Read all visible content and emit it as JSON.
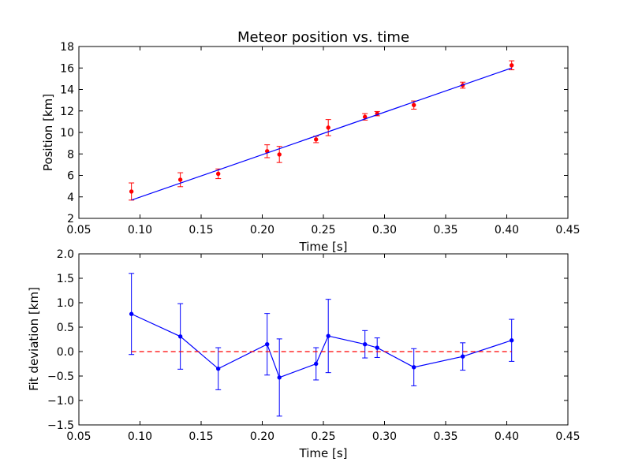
{
  "chart_data": [
    {
      "type": "scatter",
      "title": "Meteor position vs. time",
      "xlabel": "Time [s]",
      "ylabel": "Position [km]",
      "xlim": [
        0.05,
        0.45
      ],
      "ylim": [
        2,
        18
      ],
      "xticks": [
        "0.05",
        "0.10",
        "0.15",
        "0.20",
        "0.25",
        "0.30",
        "0.35",
        "0.40",
        "0.45"
      ],
      "yticks": [
        "2",
        "4",
        "6",
        "8",
        "10",
        "12",
        "14",
        "16",
        "18"
      ],
      "grid": false,
      "series": [
        {
          "kind": "errorbar-points",
          "color": "#ff0000",
          "points": [
            {
              "x": 0.093,
              "y": 4.5,
              "err": 0.8
            },
            {
              "x": 0.133,
              "y": 5.6,
              "err": 0.65
            },
            {
              "x": 0.164,
              "y": 6.15,
              "err": 0.45
            },
            {
              "x": 0.204,
              "y": 8.25,
              "err": 0.6
            },
            {
              "x": 0.214,
              "y": 7.95,
              "err": 0.75
            },
            {
              "x": 0.244,
              "y": 9.35,
              "err": 0.3
            },
            {
              "x": 0.254,
              "y": 10.45,
              "err": 0.75
            },
            {
              "x": 0.284,
              "y": 11.45,
              "err": 0.3
            },
            {
              "x": 0.294,
              "y": 11.75,
              "err": 0.2
            },
            {
              "x": 0.324,
              "y": 12.55,
              "err": 0.38
            },
            {
              "x": 0.364,
              "y": 14.4,
              "err": 0.28
            },
            {
              "x": 0.404,
              "y": 16.25,
              "err": 0.42
            }
          ]
        },
        {
          "kind": "fit-line",
          "color": "#0000ff",
          "x": [
            0.093,
            0.404
          ],
          "y": [
            3.7,
            16.0
          ]
        }
      ]
    },
    {
      "type": "line",
      "title": "",
      "xlabel": "Time [s]",
      "ylabel": "Fit deviation [km]",
      "xlim": [
        0.05,
        0.45
      ],
      "ylim": [
        -1.5,
        2.0
      ],
      "xticks": [
        "0.05",
        "0.10",
        "0.15",
        "0.20",
        "0.25",
        "0.30",
        "0.35",
        "0.40",
        "0.45"
      ],
      "yticks": [
        "−1.5",
        "−1.0",
        "−0.5",
        "0.0",
        "0.5",
        "1.0",
        "1.5",
        "2.0"
      ],
      "grid": false,
      "series": [
        {
          "kind": "errorbar-line",
          "color": "#0000ff",
          "points": [
            {
              "x": 0.093,
              "y": 0.77,
              "err": 0.83
            },
            {
              "x": 0.133,
              "y": 0.31,
              "err": 0.67
            },
            {
              "x": 0.164,
              "y": -0.35,
              "err": 0.43
            },
            {
              "x": 0.204,
              "y": 0.15,
              "err": 0.63
            },
            {
              "x": 0.214,
              "y": -0.53,
              "err": 0.79
            },
            {
              "x": 0.244,
              "y": -0.25,
              "err": 0.33
            },
            {
              "x": 0.254,
              "y": 0.32,
              "err": 0.75
            },
            {
              "x": 0.284,
              "y": 0.15,
              "err": 0.28
            },
            {
              "x": 0.294,
              "y": 0.08,
              "err": 0.2
            },
            {
              "x": 0.324,
              "y": -0.32,
              "err": 0.38
            },
            {
              "x": 0.364,
              "y": -0.1,
              "err": 0.28
            },
            {
              "x": 0.404,
              "y": 0.23,
              "err": 0.43
            }
          ]
        },
        {
          "kind": "reference-line",
          "color": "#ff0000",
          "dashed": true,
          "x": [
            0.093,
            0.404
          ],
          "y": [
            0.0,
            0.0
          ]
        }
      ]
    }
  ]
}
